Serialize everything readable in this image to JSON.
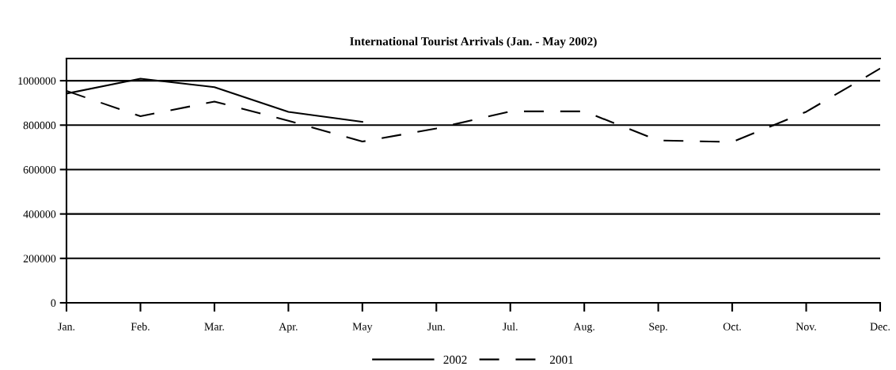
{
  "chart_data": {
    "type": "line",
    "title": "International Tourist Arrivals (Jan. - May 2002)",
    "categories": [
      "Jan.",
      "Feb.",
      "Mar.",
      "Apr.",
      "May",
      "Jun.",
      "Jul.",
      "Aug.",
      "Sep.",
      "Oct.",
      "Nov.",
      "Dec."
    ],
    "series": [
      {
        "name": "2002",
        "color": "#000000",
        "line_style": "solid",
        "values": [
          942000,
          1009000,
          971000,
          860000,
          815000,
          null,
          null,
          null,
          null,
          null,
          null,
          null
        ]
      },
      {
        "name": "2001",
        "color": "#000000",
        "line_style": "dashed",
        "values": [
          954000,
          840000,
          906000,
          820000,
          726000,
          785000,
          862000,
          862000,
          731000,
          724000,
          860000,
          1055000
        ]
      }
    ],
    "ylim": [
      0,
      1100000
    ],
    "yticks": [
      0,
      200000,
      400000,
      600000,
      800000,
      1000000
    ],
    "grid": "y",
    "legend": "bottom",
    "marker": "none"
  }
}
